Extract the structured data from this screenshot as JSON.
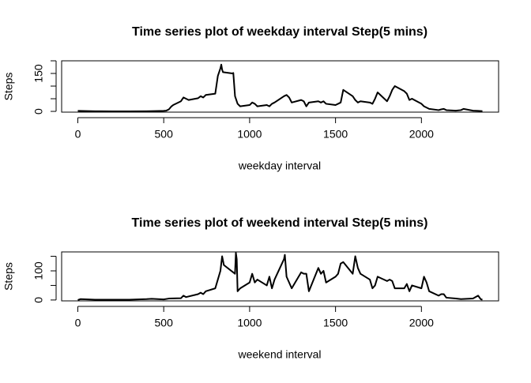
{
  "chart_data": [
    {
      "type": "line",
      "title": "Time series plot of weekday interval Step(5 mins)",
      "x_label": "weekday interval",
      "y_label": "Steps",
      "color": "#000000",
      "x": [
        0,
        100,
        200,
        300,
        400,
        500,
        515,
        530,
        545,
        555,
        600,
        615,
        630,
        645,
        700,
        715,
        730,
        745,
        800,
        815,
        830,
        835,
        840,
        845,
        900,
        905,
        915,
        930,
        945,
        1000,
        1015,
        1030,
        1045,
        1100,
        1115,
        1130,
        1145,
        1200,
        1215,
        1230,
        1245,
        1300,
        1315,
        1330,
        1345,
        1400,
        1415,
        1430,
        1445,
        1500,
        1515,
        1530,
        1545,
        1600,
        1615,
        1630,
        1645,
        1700,
        1715,
        1730,
        1745,
        1800,
        1815,
        1830,
        1845,
        1900,
        1915,
        1930,
        1945,
        2000,
        2015,
        2030,
        2045,
        2100,
        2115,
        2130,
        2145,
        2200,
        2230,
        2245,
        2300,
        2330,
        2355
      ],
      "values": [
        2,
        0.5,
        0.3,
        0.2,
        0.5,
        2,
        3,
        8,
        20,
        25,
        40,
        55,
        50,
        45,
        52,
        60,
        55,
        65,
        70,
        140,
        170,
        185,
        165,
        155,
        150,
        152,
        60,
        30,
        20,
        25,
        35,
        30,
        20,
        25,
        20,
        30,
        35,
        60,
        65,
        55,
        35,
        45,
        40,
        20,
        35,
        40,
        35,
        40,
        30,
        25,
        30,
        35,
        85,
        60,
        45,
        35,
        40,
        35,
        30,
        50,
        75,
        40,
        60,
        85,
        100,
        80,
        70,
        45,
        50,
        30,
        20,
        15,
        10,
        5,
        8,
        10,
        5,
        3,
        5,
        10,
        3,
        2,
        1
      ],
      "xlim": [
        -94.2,
        2449.2
      ],
      "xticks": [
        0,
        500,
        1000,
        1500,
        2000
      ],
      "ylim": [
        -3,
        200
      ],
      "yticks": [
        0,
        150
      ],
      "yminor": [
        50,
        100,
        200
      ]
    },
    {
      "type": "line",
      "title": "Time series plot of weekend interval Step(5 mins)",
      "x_label": "weekend interval",
      "y_label": "Steps",
      "color": "#000000",
      "x": [
        0,
        15,
        100,
        200,
        300,
        400,
        430,
        500,
        530,
        600,
        615,
        630,
        700,
        715,
        730,
        745,
        800,
        815,
        830,
        840,
        850,
        915,
        920,
        925,
        930,
        945,
        1000,
        1015,
        1030,
        1045,
        1100,
        1115,
        1130,
        1145,
        1200,
        1205,
        1215,
        1230,
        1245,
        1300,
        1315,
        1330,
        1345,
        1400,
        1415,
        1430,
        1445,
        1500,
        1515,
        1530,
        1545,
        1600,
        1615,
        1630,
        1645,
        1700,
        1715,
        1730,
        1745,
        1800,
        1815,
        1830,
        1845,
        1900,
        1915,
        1930,
        1945,
        2000,
        2015,
        2030,
        2045,
        2100,
        2115,
        2130,
        2145,
        2200,
        2230,
        2300,
        2330,
        2345,
        2355
      ],
      "values": [
        0,
        3,
        1,
        1,
        1,
        3,
        4,
        2,
        5,
        6,
        15,
        10,
        20,
        25,
        20,
        30,
        40,
        70,
        100,
        150,
        120,
        90,
        162,
        140,
        30,
        40,
        60,
        90,
        60,
        70,
        50,
        80,
        40,
        70,
        140,
        155,
        80,
        60,
        40,
        95,
        90,
        90,
        30,
        110,
        90,
        100,
        60,
        80,
        90,
        125,
        130,
        90,
        150,
        110,
        90,
        70,
        40,
        50,
        80,
        65,
        70,
        65,
        40,
        40,
        55,
        30,
        50,
        40,
        80,
        60,
        30,
        15,
        20,
        20,
        8,
        5,
        3,
        5,
        15,
        3,
        1
      ],
      "xlim": [
        -94.2,
        2449.2
      ],
      "xticks": [
        0,
        500,
        1000,
        1500,
        2000
      ],
      "ylim": [
        -3,
        165
      ],
      "yticks": [
        0,
        100
      ],
      "yminor": [
        50,
        150
      ]
    }
  ]
}
